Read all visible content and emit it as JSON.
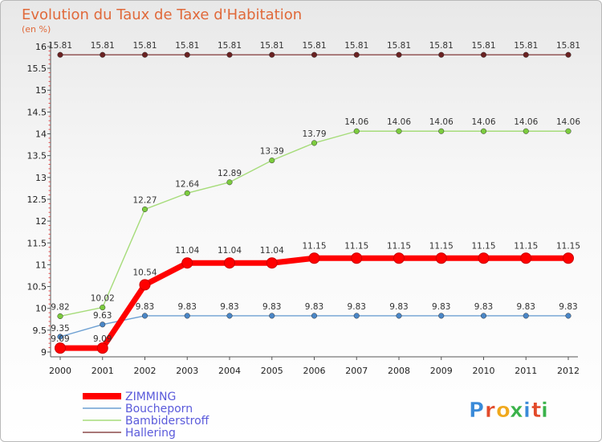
{
  "chart_data": {
    "type": "line",
    "title": "Evolution du Taux de Taxe d'Habitation",
    "subtitle": "(en %)",
    "x": [
      "2000",
      "2001",
      "2002",
      "2003",
      "2004",
      "2005",
      "2006",
      "2007",
      "2008",
      "2009",
      "2010",
      "2011",
      "2012"
    ],
    "ylim": [
      9,
      16
    ],
    "yticks": [
      "9",
      "9.5",
      "10",
      "10.5",
      "11",
      "11.5",
      "12",
      "12.5",
      "13",
      "13.5",
      "14",
      "14.5",
      "15",
      "15.5",
      "16"
    ],
    "series": [
      {
        "name": "ZIMMING",
        "color": "#ff0000",
        "values": [
          9.09,
          9.09,
          10.54,
          11.04,
          11.04,
          11.04,
          11.15,
          11.15,
          11.15,
          11.15,
          11.15,
          11.15,
          11.15
        ],
        "labels": [
          "9.09",
          "9.09",
          "10.54",
          "11.04",
          "11.04",
          "11.04",
          "11.15",
          "11.15",
          "11.15",
          "11.15",
          "11.15",
          "11.15",
          "11.15"
        ]
      },
      {
        "name": "Boucheporn",
        "color": "#6c9fd2",
        "marker": "#4a86c6",
        "values": [
          9.35,
          9.63,
          9.83,
          9.83,
          9.83,
          9.83,
          9.83,
          9.83,
          9.83,
          9.83,
          9.83,
          9.83,
          9.83
        ],
        "labels": [
          "9.35",
          "9.63",
          "9.83",
          "9.83",
          "9.83",
          "9.83",
          "9.83",
          "9.83",
          "9.83",
          "9.83",
          "9.83",
          "9.83",
          "9.83"
        ]
      },
      {
        "name": "Bambiderstroff",
        "color": "#a6dc7a",
        "marker": "#7ccc3e",
        "values": [
          9.82,
          10.02,
          12.27,
          12.64,
          12.89,
          13.39,
          13.79,
          14.06,
          14.06,
          14.06,
          14.06,
          14.06,
          14.06
        ],
        "labels": [
          "9.82",
          "10.02",
          "12.27",
          "12.64",
          "12.89",
          "13.39",
          "13.79",
          "14.06",
          "14.06",
          "14.06",
          "14.06",
          "14.06",
          "14.06"
        ]
      },
      {
        "name": "Hallering",
        "color": "#8b4a4a",
        "marker": "#6a2222",
        "values": [
          15.81,
          15.81,
          15.81,
          15.81,
          15.81,
          15.81,
          15.81,
          15.81,
          15.81,
          15.81,
          15.81,
          15.81,
          15.81
        ],
        "labels": [
          "15.81",
          "15.81",
          "15.81",
          "15.81",
          "15.81",
          "15.81",
          "15.81",
          "15.81",
          "15.81",
          "15.81",
          "15.81",
          "15.81",
          "15.81"
        ]
      }
    ],
    "legend": [
      "ZIMMING",
      "Boucheporn",
      "Bambiderstroff",
      "Hallering"
    ],
    "legend_position": "bottom-left",
    "grid": false
  },
  "logo": {
    "text": "Proxiti",
    "letters": [
      "P",
      "r",
      "o",
      "x",
      "i",
      "t",
      "i"
    ],
    "colors": [
      "#3a8ad8",
      "#e24a2a",
      "#f0a81c",
      "#3ab24a",
      "#3a8ad8",
      "#e24a2a",
      "#3ab24a"
    ]
  }
}
